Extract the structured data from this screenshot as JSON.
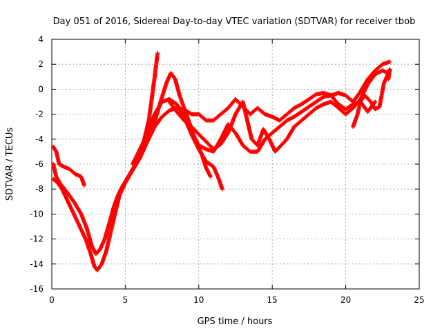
{
  "chart_data": {
    "type": "scatter",
    "title": "Day 051 of 2016, Sidereal Day-to-day VTEC variation (SDTVAR) for receiver tbob",
    "xlabel": "GPS time / hours",
    "ylabel": "SDTVAR / TECUs",
    "xlim": [
      0,
      25
    ],
    "ylim": [
      -16,
      4
    ],
    "x_ticks": [
      "0",
      "5",
      "10",
      "15",
      "20",
      "25"
    ],
    "y_ticks": [
      "4",
      "2",
      "0",
      "-2",
      "-4",
      "-6",
      "-8",
      "-10",
      "-12",
      "-14",
      "-16"
    ],
    "grid": true,
    "legend": "none",
    "marker": "plus",
    "color": "#ff0000",
    "series": [
      {
        "points": [
          [
            0.1,
            -4.6
          ],
          [
            0.3,
            -5.0
          ],
          [
            0.5,
            -6.0
          ],
          [
            0.8,
            -6.2
          ],
          [
            1.2,
            -6.4
          ],
          [
            1.6,
            -6.8
          ],
          [
            2.0,
            -7.0
          ],
          [
            2.2,
            -7.7
          ]
        ]
      },
      {
        "points": [
          [
            0.1,
            -6.0
          ],
          [
            0.3,
            -7.0
          ],
          [
            0.6,
            -7.6
          ],
          [
            1.0,
            -8.2
          ],
          [
            1.5,
            -9.0
          ],
          [
            2.0,
            -10.0
          ],
          [
            2.4,
            -11.2
          ],
          [
            2.7,
            -12.5
          ],
          [
            3.0,
            -13.2
          ],
          [
            3.3,
            -12.8
          ],
          [
            3.6,
            -12.0
          ],
          [
            3.9,
            -10.8
          ],
          [
            4.2,
            -9.5
          ],
          [
            4.5,
            -8.5
          ],
          [
            4.8,
            -7.8
          ],
          [
            5.2,
            -7.0
          ],
          [
            5.6,
            -6.2
          ],
          [
            6.0,
            -5.0
          ],
          [
            6.3,
            -4.0
          ],
          [
            6.6,
            -2.5
          ],
          [
            6.8,
            -0.8
          ],
          [
            7.0,
            1.0
          ],
          [
            7.2,
            2.9
          ]
        ]
      },
      {
        "points": [
          [
            0.1,
            -7.2
          ],
          [
            0.4,
            -7.5
          ],
          [
            0.7,
            -8.0
          ],
          [
            1.1,
            -9.0
          ],
          [
            1.5,
            -10.0
          ],
          [
            1.9,
            -11.0
          ],
          [
            2.3,
            -12.0
          ],
          [
            2.6,
            -13.0
          ],
          [
            2.9,
            -14.2
          ],
          [
            3.1,
            -14.5
          ],
          [
            3.4,
            -14.0
          ],
          [
            3.7,
            -13.0
          ],
          [
            4.0,
            -11.5
          ],
          [
            4.3,
            -10.0
          ],
          [
            4.6,
            -8.5
          ],
          [
            5.0,
            -7.5
          ],
          [
            5.5,
            -6.5
          ],
          [
            6.0,
            -5.5
          ],
          [
            6.5,
            -3.5
          ],
          [
            7.0,
            -2.0
          ],
          [
            7.5,
            -1.0
          ],
          [
            8.0,
            -0.8
          ],
          [
            8.5,
            -1.2
          ],
          [
            9.0,
            -2.2
          ],
          [
            9.5,
            -3.6
          ],
          [
            10.0,
            -4.8
          ],
          [
            10.5,
            -5.8
          ],
          [
            11.0,
            -6.2
          ],
          [
            11.3,
            -7.0
          ],
          [
            11.6,
            -8.0
          ]
        ]
      },
      {
        "points": [
          [
            5.5,
            -6.0
          ],
          [
            6.0,
            -4.8
          ],
          [
            6.5,
            -3.6
          ],
          [
            7.0,
            -2.6
          ],
          [
            7.4,
            -1.0
          ],
          [
            7.8,
            0.5
          ],
          [
            8.1,
            1.3
          ],
          [
            8.4,
            0.8
          ],
          [
            8.7,
            -0.5
          ],
          [
            9.0,
            -1.5
          ],
          [
            9.4,
            -2.8
          ],
          [
            9.8,
            -4.2
          ],
          [
            10.2,
            -5.2
          ],
          [
            10.5,
            -6.3
          ],
          [
            10.8,
            -7.0
          ]
        ]
      },
      {
        "points": [
          [
            6.0,
            -5.5
          ],
          [
            6.5,
            -4.2
          ],
          [
            7.0,
            -3.0
          ],
          [
            7.5,
            -2.2
          ],
          [
            8.0,
            -1.7
          ],
          [
            8.5,
            -1.5
          ],
          [
            9.0,
            -1.6
          ],
          [
            9.5,
            -2.0
          ],
          [
            10.0,
            -2.0
          ],
          [
            10.5,
            -2.5
          ],
          [
            11.0,
            -2.5
          ],
          [
            11.5,
            -2.0
          ],
          [
            12.0,
            -1.5
          ],
          [
            12.5,
            -0.8
          ],
          [
            13.0,
            -1.4
          ],
          [
            13.5,
            -2.0
          ],
          [
            14.0,
            -1.5
          ],
          [
            14.5,
            -2.0
          ],
          [
            15.0,
            -2.2
          ],
          [
            15.5,
            -2.5
          ],
          [
            16.0,
            -2.0
          ],
          [
            16.5,
            -1.5
          ],
          [
            17.0,
            -1.2
          ],
          [
            17.5,
            -0.8
          ],
          [
            18.0,
            -0.4
          ],
          [
            18.5,
            -0.3
          ],
          [
            19.0,
            -0.5
          ],
          [
            19.5,
            -1.2
          ],
          [
            20.0,
            -1.6
          ],
          [
            20.5,
            -1.2
          ],
          [
            21.0,
            -1.0
          ],
          [
            21.5,
            -1.8
          ],
          [
            22.0,
            -1.0
          ]
        ]
      },
      {
        "points": [
          [
            8.0,
            -1.0
          ],
          [
            8.5,
            -1.8
          ],
          [
            9.0,
            -2.5
          ],
          [
            9.5,
            -3.0
          ],
          [
            10.0,
            -3.6
          ],
          [
            10.5,
            -4.2
          ],
          [
            11.0,
            -4.8
          ],
          [
            11.5,
            -4.4
          ],
          [
            12.0,
            -3.5
          ],
          [
            12.5,
            -2.0
          ],
          [
            13.0,
            -1.0
          ],
          [
            13.3,
            -2.5
          ],
          [
            13.6,
            -4.0
          ],
          [
            14.0,
            -4.5
          ],
          [
            14.4,
            -3.2
          ],
          [
            14.8,
            -4.0
          ],
          [
            15.2,
            -5.0
          ],
          [
            15.6,
            -4.5
          ],
          [
            16.0,
            -4.0
          ],
          [
            16.5,
            -3.0
          ],
          [
            17.0,
            -2.5
          ],
          [
            17.5,
            -2.0
          ],
          [
            18.0,
            -1.5
          ],
          [
            18.5,
            -1.2
          ],
          [
            19.0,
            -1.0
          ],
          [
            19.5,
            -1.5
          ],
          [
            20.0,
            -2.0
          ],
          [
            20.5,
            -1.5
          ],
          [
            21.0,
            -0.8
          ],
          [
            21.5,
            0.4
          ],
          [
            22.0,
            1.2
          ],
          [
            22.5,
            1.5
          ],
          [
            22.9,
            1.3
          ]
        ]
      },
      {
        "points": [
          [
            9.0,
            -2.0
          ],
          [
            9.5,
            -3.4
          ],
          [
            10.0,
            -4.5
          ],
          [
            10.5,
            -4.8
          ],
          [
            11.0,
            -5.0
          ],
          [
            11.5,
            -4.0
          ],
          [
            12.0,
            -2.8
          ],
          [
            12.5,
            -3.5
          ],
          [
            13.0,
            -4.5
          ],
          [
            13.5,
            -5.0
          ],
          [
            14.0,
            -5.0
          ],
          [
            14.5,
            -4.0
          ],
          [
            15.0,
            -3.5
          ],
          [
            15.5,
            -3.0
          ],
          [
            16.0,
            -2.5
          ],
          [
            16.5,
            -2.2
          ],
          [
            17.0,
            -1.8
          ],
          [
            17.5,
            -1.4
          ],
          [
            18.0,
            -1.0
          ],
          [
            18.5,
            -0.6
          ],
          [
            19.0,
            -0.5
          ],
          [
            19.5,
            -0.3
          ],
          [
            20.0,
            -0.5
          ],
          [
            20.5,
            -1.0
          ],
          [
            21.0,
            -0.2
          ],
          [
            21.5,
            0.8
          ],
          [
            22.0,
            1.5
          ],
          [
            22.5,
            2.0
          ],
          [
            23.0,
            2.2
          ]
        ]
      },
      {
        "points": [
          [
            20.5,
            -3.0
          ],
          [
            20.8,
            -2.0
          ],
          [
            21.0,
            -1.0
          ],
          [
            21.3,
            -0.5
          ],
          [
            21.7,
            -1.0
          ],
          [
            22.0,
            -1.6
          ],
          [
            22.3,
            -1.4
          ],
          [
            22.6,
            0.5
          ],
          [
            22.8,
            1.0
          ],
          [
            23.0,
            1.6
          ],
          [
            22.9,
            0.8
          ]
        ]
      }
    ]
  }
}
